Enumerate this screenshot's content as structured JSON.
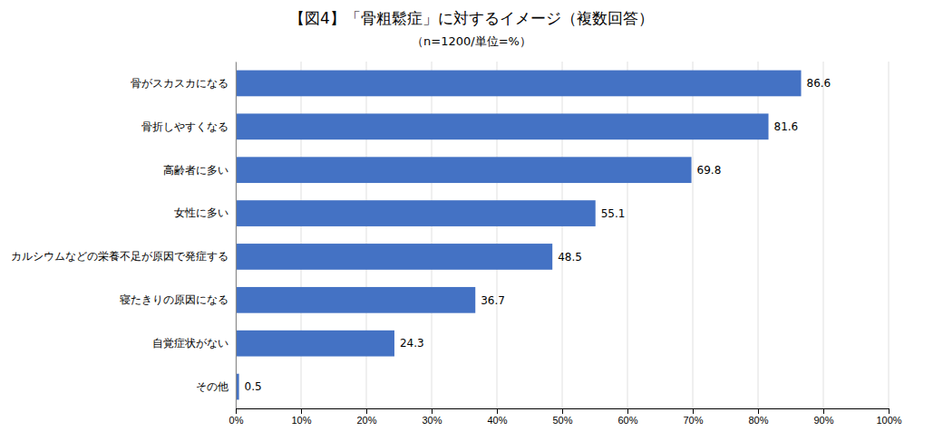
{
  "chart_data": {
    "type": "bar",
    "orientation": "horizontal",
    "title": "【図4】「骨粗鬆症」に対するイメージ（複数回答）",
    "subtitle": "（n=1200/単位=%）",
    "categories": [
      "骨がスカスカになる",
      "骨折しやすくなる",
      "高齢者に多い",
      "女性に多い",
      "カルシウムなどの栄養不足が原因で発症する",
      "寝たきりの原因になる",
      "自覚症状がない",
      "その他"
    ],
    "values": [
      86.6,
      81.6,
      69.8,
      55.1,
      48.5,
      36.7,
      24.3,
      0.5
    ],
    "color": "#4472c4",
    "xlim": [
      0,
      100
    ],
    "xticks": [
      {
        "value": 0,
        "label": "0%"
      },
      {
        "value": 10,
        "label": "10%"
      },
      {
        "value": 20,
        "label": "20%"
      },
      {
        "value": 30,
        "label": "30%"
      },
      {
        "value": 40,
        "label": "40%"
      },
      {
        "value": 50,
        "label": "50%"
      },
      {
        "value": 60,
        "label": "60%"
      },
      {
        "value": 70,
        "label": "70%"
      },
      {
        "value": 80,
        "label": "80%"
      },
      {
        "value": 90,
        "label": "90%"
      },
      {
        "value": 100,
        "label": "100%"
      }
    ],
    "grid": true,
    "data_labels": true
  }
}
